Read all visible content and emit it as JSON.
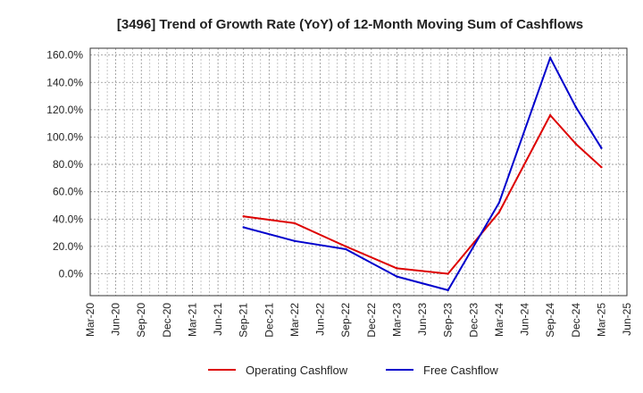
{
  "chart_data": {
    "type": "line",
    "title": "[3496]  Trend of Growth Rate (YoY) of 12-Month Moving Sum of Cashflows",
    "xlabel": "",
    "ylabel": "",
    "x": [
      "Mar-20",
      "Jun-20",
      "Sep-20",
      "Dec-20",
      "Mar-21",
      "Jun-21",
      "Sep-21",
      "Dec-21",
      "Mar-22",
      "Jun-22",
      "Sep-22",
      "Dec-22",
      "Mar-23",
      "Jun-23",
      "Sep-23",
      "Dec-23",
      "Mar-24",
      "Jun-24",
      "Sep-24",
      "Dec-24",
      "Mar-25",
      "Jun-25"
    ],
    "y_ticks": [
      "0.0%",
      "20.0%",
      "40.0%",
      "60.0%",
      "80.0%",
      "100.0%",
      "120.0%",
      "140.0%",
      "160.0%"
    ],
    "ylim": [
      -16,
      165
    ],
    "grid": true,
    "legend_position": "bottom",
    "series": [
      {
        "name": "Operating Cashflow",
        "color": "#dd0000",
        "values": [
          null,
          null,
          null,
          null,
          null,
          null,
          42,
          null,
          37,
          null,
          20,
          null,
          4,
          null,
          0,
          null,
          45,
          null,
          116,
          95,
          78,
          null
        ]
      },
      {
        "name": "Free Cashflow",
        "color": "#0000cc",
        "values": [
          null,
          null,
          null,
          null,
          null,
          null,
          34,
          null,
          24,
          null,
          18,
          null,
          -2,
          null,
          -12,
          null,
          52,
          null,
          158,
          122,
          92,
          null
        ]
      }
    ]
  }
}
